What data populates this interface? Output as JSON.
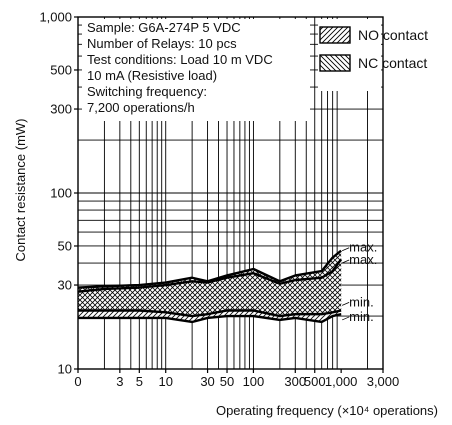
{
  "chart_data": {
    "type": "area",
    "title": "",
    "xlabel": "Operating frequency (×10⁴ operations)",
    "ylabel": "Contact resistance (mW)",
    "x_scale": "log",
    "y_scale": "log",
    "xlim": [
      1,
      3000
    ],
    "ylim": [
      10,
      1000
    ],
    "x_ticks": [
      {
        "v": 1,
        "label": "0"
      },
      {
        "v": 3,
        "label": "3"
      },
      {
        "v": 5,
        "label": "5"
      },
      {
        "v": 10,
        "label": "10"
      },
      {
        "v": 30,
        "label": "30"
      },
      {
        "v": 50,
        "label": "50"
      },
      {
        "v": 100,
        "label": "100"
      },
      {
        "v": 300,
        "label": "300"
      },
      {
        "v": 500,
        "label": "500"
      },
      {
        "v": 1000,
        "label": "1,000"
      },
      {
        "v": 3000,
        "label": "3,000"
      }
    ],
    "y_ticks": [
      {
        "v": 10,
        "label": "10"
      },
      {
        "v": 30,
        "label": "30"
      },
      {
        "v": 50,
        "label": "50"
      },
      {
        "v": 100,
        "label": "100"
      },
      {
        "v": 300,
        "label": "300"
      },
      {
        "v": 500,
        "label": "500"
      },
      {
        "v": 1000,
        "label": "1,000"
      }
    ],
    "grid": true,
    "info_lines": [
      "Sample: G6A-274P  5 VDC",
      "Number of Relays: 10 pcs",
      "Test conditions: Load 10 m VDC",
      "10 mA (Resistive load)",
      "Switching frequency:",
      "7,200 operations/h"
    ],
    "legend_position": "top-right",
    "series": [
      {
        "name": "NO contact",
        "pattern": "diagonal",
        "x": [
          1,
          2,
          5,
          10,
          20,
          30,
          50,
          100,
          200,
          300,
          600,
          800,
          1000
        ],
        "max": [
          27.5,
          28.5,
          29,
          30,
          31.5,
          31,
          33,
          35,
          30.5,
          32,
          33,
          36,
          42
        ],
        "min": [
          19.5,
          19.5,
          19.5,
          19.5,
          18.5,
          19.5,
          20,
          20,
          19,
          19.5,
          18.5,
          20,
          20.5
        ]
      },
      {
        "name": "NC contact",
        "pattern": "cross-diagonal",
        "x": [
          1,
          2,
          5,
          10,
          20,
          30,
          50,
          100,
          200,
          300,
          600,
          800,
          1000
        ],
        "max": [
          29,
          29.5,
          30,
          31,
          33,
          31.5,
          34,
          37,
          31.5,
          34,
          36,
          43,
          47
        ],
        "min": [
          21.5,
          21.5,
          21.5,
          21,
          20,
          20.5,
          21.5,
          21.5,
          20,
          20.5,
          20.5,
          21,
          21.5
        ]
      }
    ],
    "annotations": [
      {
        "text": "max.",
        "x": 1000,
        "y": 47
      },
      {
        "text": "max.",
        "x": 1000,
        "y": 40
      },
      {
        "text": "min.",
        "x": 1000,
        "y": 23
      },
      {
        "text": "min.",
        "x": 1000,
        "y": 19
      }
    ]
  }
}
